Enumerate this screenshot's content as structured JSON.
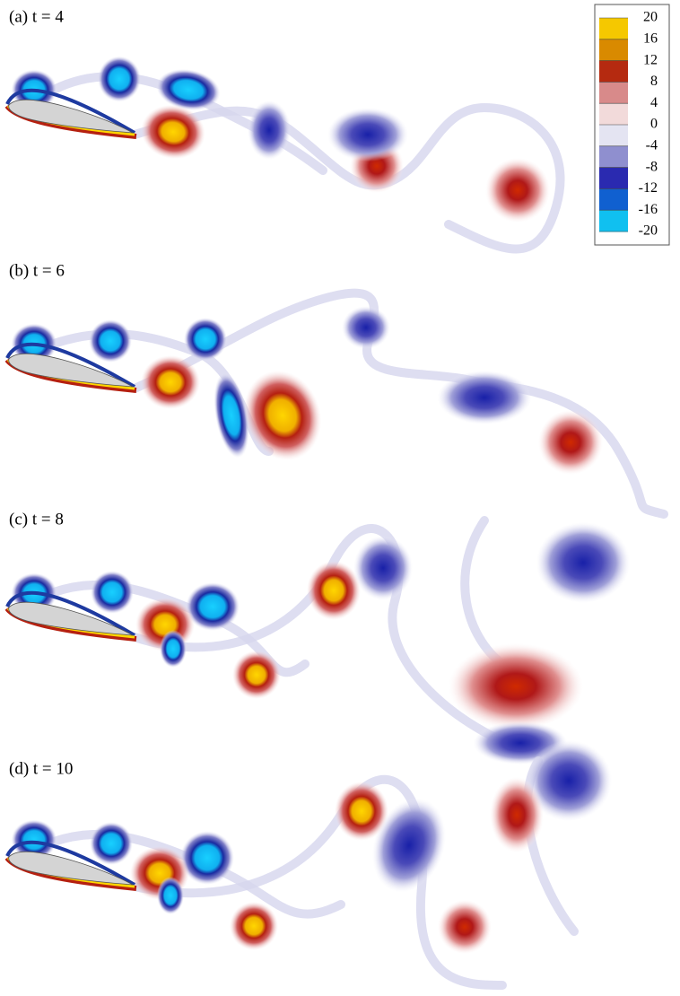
{
  "figure": {
    "panels": [
      {
        "label": "(a) t = 4"
      },
      {
        "label": "(b) t = 6"
      },
      {
        "label": "(c) t = 8"
      },
      {
        "label": "(d) t = 10"
      }
    ],
    "colorbar": {
      "ticks": [
        20,
        16,
        12,
        8,
        4,
        0,
        -4,
        -8,
        -12,
        -16,
        -20
      ],
      "colors": [
        "#f5c800",
        "#d98a00",
        "#b52a10",
        "#d88a8a",
        "#f2dada",
        "#e4e4f2",
        "#8f8fcf",
        "#2a2ab0",
        "#1060d0",
        "#10c0f0"
      ]
    }
  }
}
